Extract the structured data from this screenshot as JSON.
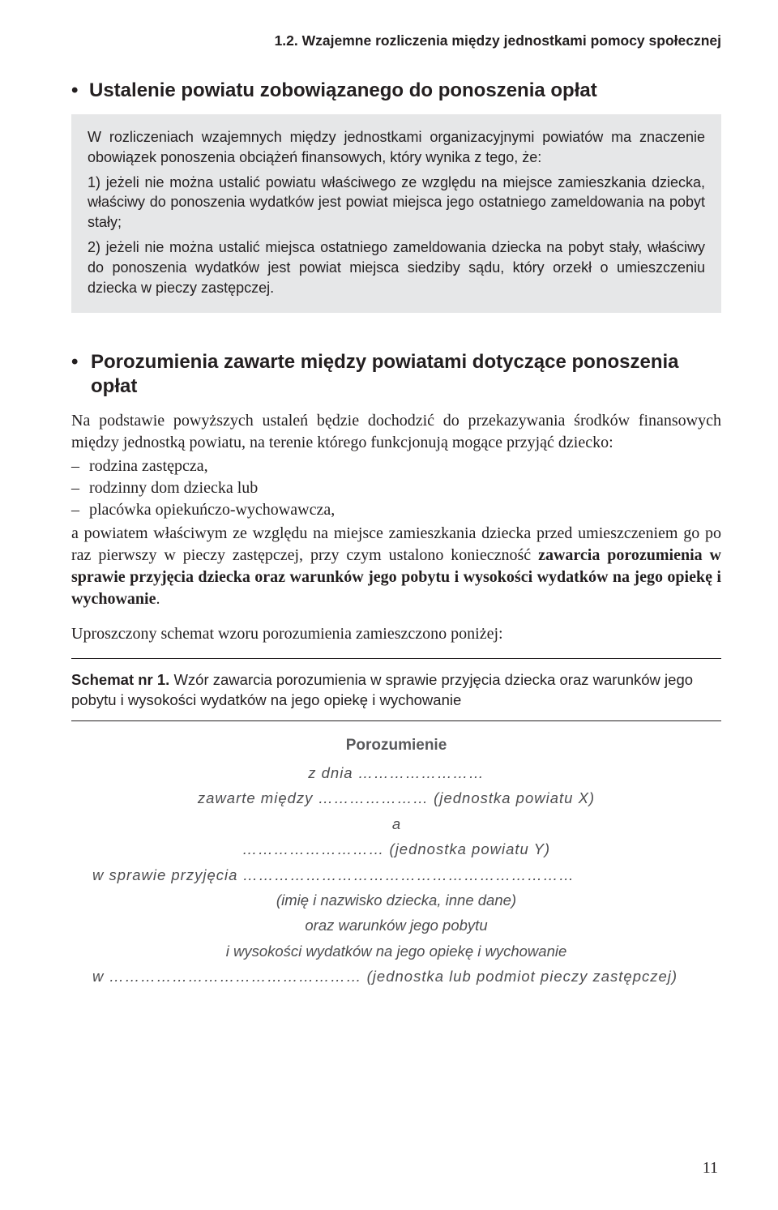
{
  "running_head": "1.2. Wzajemne rozliczenia między jednostkami pomocy społecznej",
  "section1": {
    "bullet_title": "Ustalenie powiatu zobowiązanego do ponoszenia opłat",
    "greybox": {
      "p1": "W rozliczeniach wzajemnych między jednostkami organizacyjnymi powiatów ma znaczenie obowiązek ponoszenia obciążeń finansowych, który wynika z tego, że:",
      "p2": "1) jeżeli nie można ustalić powiatu właściwego ze względu na miejsce zamieszkania dziecka, właściwy do ponoszenia wydatków jest powiat miejsca jego ostatniego zameldowania na pobyt stały;",
      "p3": "2) jeżeli nie można ustalić miejsca ostatniego zameldowania dziecka na pobyt stały, właściwy do ponoszenia wydatków jest powiat miejsca siedziby sądu, który orzekł o umieszczeniu dziecka w pieczy zastępczej."
    }
  },
  "section2": {
    "bullet_title": "Porozumienia zawarte między powiatami dotyczące ponoszenia opłat",
    "para1": "Na podstawie powyższych ustaleń będzie dochodzić do przekazywania środków finansowych między jednostką powiatu, na terenie którego funkcjonują mogące przyjąć dziecko:",
    "li1": "rodzina zastępcza,",
    "li2": "rodzinny dom dziecka lub",
    "li3": "placówka opiekuńczo-wychowawcza,",
    "para2a": "a powiatem właściwym ze względu na miejsce zamieszkania dziecka przed umieszczeniem go po raz pierwszy w pieczy zastępczej, przy czym ustalono konieczność ",
    "para2b": "zawarcia porozumienia w sprawie przyjęcia dziecka oraz warunków jego pobytu i wysokości wydatków na jego opiekę i wychowanie",
    "para2c": ".",
    "para3": "Uproszczony schemat wzoru porozumienia zamieszczono poniżej:"
  },
  "schemat": {
    "label": "Schemat nr 1.",
    "caption": " Wzór zawarcia porozumienia w sprawie przyjęcia dziecka oraz warunków jego pobytu i wysokości wydatków na jego opiekę i wychowanie"
  },
  "form": {
    "title": "Porozumienie",
    "l1": "z dnia ……………………",
    "l2": "zawarte między ………………… (jednostka powiatu X)",
    "l3": "a",
    "l4": "……………………… (jednostka powiatu Y)",
    "l5": "w sprawie przyjęcia ………………………………………………………",
    "l6": "(imię i nazwisko dziecka, inne dane)",
    "l7": "oraz warunków jego pobytu",
    "l8": "i wysokości wydatków na jego opiekę i wychowanie",
    "l9": "w ………………………………………… (jednostka lub podmiot pieczy zastępczej)"
  },
  "page_number": "11"
}
